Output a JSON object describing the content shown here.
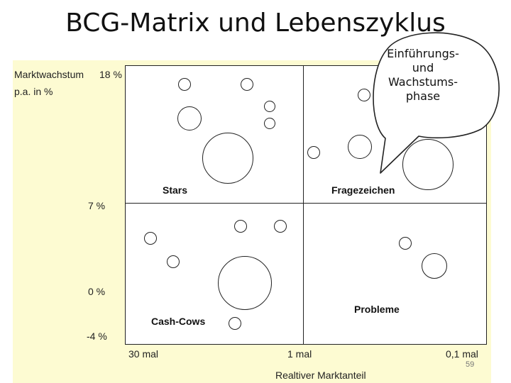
{
  "title": "BCG-Matrix und Lebenszyklus",
  "callout": [
    "Einführungs-",
    "und",
    "Wachstums-",
    "phase"
  ],
  "y_axis": {
    "label_line1": "Marktwachstum",
    "label_line2": "p.a. in %",
    "ticks": [
      "18 %",
      "7 %",
      "0 %",
      "-4 %"
    ]
  },
  "x_axis": {
    "label": "Realtiver Marktanteil",
    "ticks": [
      "30 mal",
      "1 mal",
      "0,1 mal"
    ]
  },
  "quadrants": {
    "stars": "Stars",
    "question": "Fragezeichen",
    "cashcows": "Cash-Cows",
    "dogs": "Probleme"
  },
  "page_number": "59",
  "colors": {
    "panel": "#fdfbd2",
    "matrix": "#ffffff",
    "lines": "#222222"
  }
}
